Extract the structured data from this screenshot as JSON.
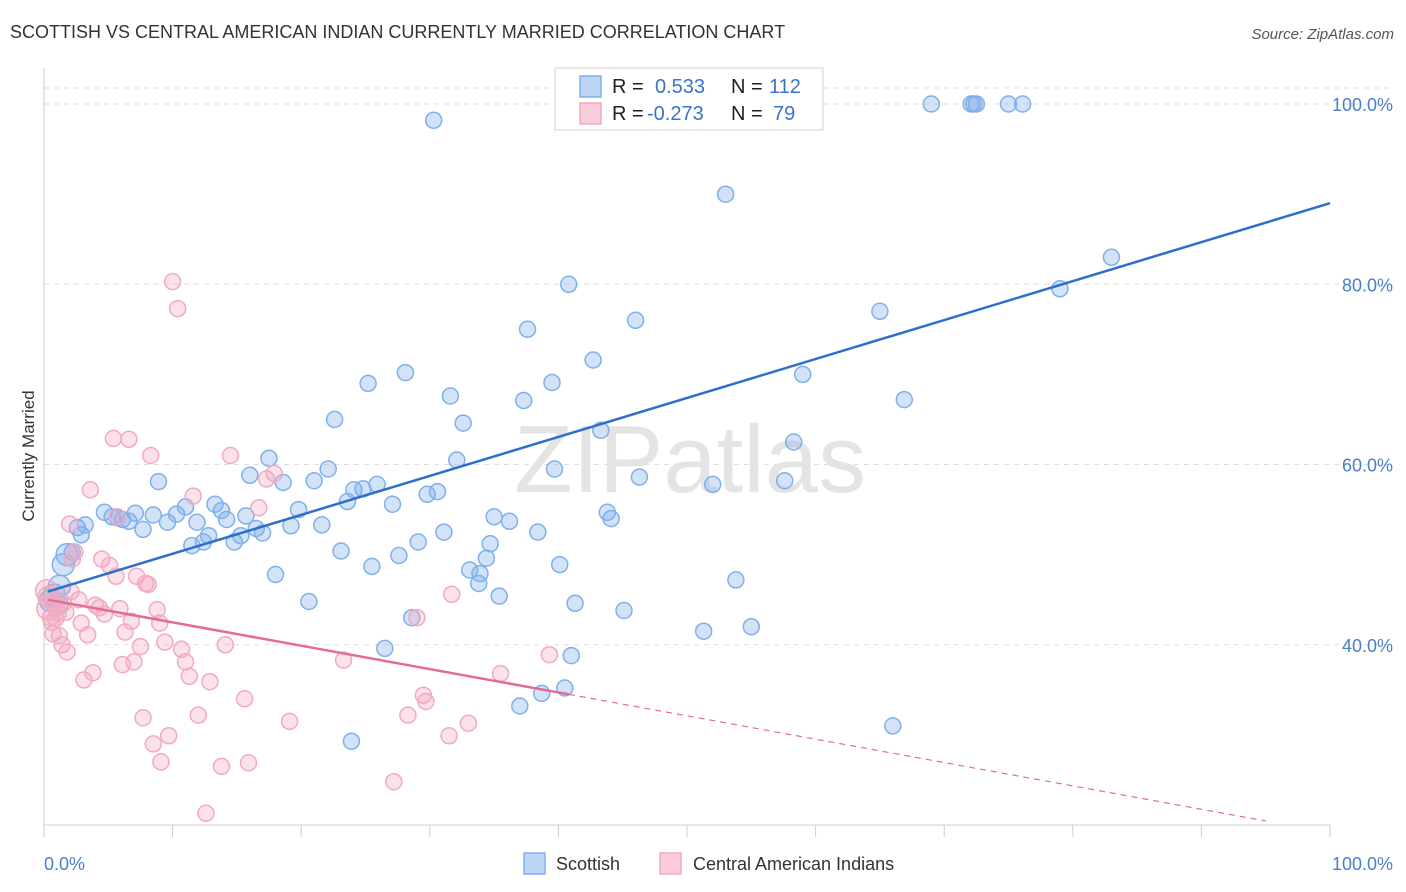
{
  "chart_data": {
    "type": "scatter",
    "title": "SCOTTISH VS CENTRAL AMERICAN INDIAN CURRENTLY MARRIED CORRELATION CHART",
    "source": "Source: ZipAtlas.com",
    "ylabel": "Currently Married",
    "xlabel": "",
    "xlim": [
      0,
      100
    ],
    "ylim": [
      20,
      104
    ],
    "x_tick_labels": [
      "0.0%",
      "100.0%"
    ],
    "y_ticks": [
      {
        "value": 40,
        "label": "40.0%"
      },
      {
        "value": 60,
        "label": "60.0%"
      },
      {
        "value": 80,
        "label": "80.0%"
      },
      {
        "value": 100,
        "label": "100.0%"
      }
    ],
    "grid": true,
    "legend_placement": "bottom-center",
    "watermark": "ZIPatlas",
    "stats": [
      {
        "r_label": "R =",
        "r_value": "0.533",
        "n_label": "N =",
        "n_value": "112"
      },
      {
        "r_label": "R =",
        "r_value": "-0.273",
        "n_label": "N =",
        "n_value": "79"
      }
    ],
    "series": [
      {
        "name": "Scottish",
        "color": "#7fb0ea",
        "line_color": "#2f6fcc",
        "trend": {
          "x0": 0.3,
          "y0": 45.9,
          "x1": 100,
          "y1": 89.0,
          "dash_from": 100
        },
        "points": [
          [
            0.5,
            44.9
          ],
          [
            0.8,
            45.5
          ],
          [
            1.0,
            44.5
          ],
          [
            1.2,
            46.5
          ],
          [
            1.5,
            48.9
          ],
          [
            1.8,
            50.0
          ],
          [
            2.2,
            50.3
          ],
          [
            2.6,
            53.0
          ],
          [
            2.9,
            52.2
          ],
          [
            3.2,
            53.3
          ],
          [
            4.7,
            54.7
          ],
          [
            5.3,
            54.2
          ],
          [
            5.7,
            54.1
          ],
          [
            6.1,
            53.9
          ],
          [
            6.6,
            53.7
          ],
          [
            7.1,
            54.6
          ],
          [
            7.7,
            52.8
          ],
          [
            8.5,
            54.4
          ],
          [
            8.9,
            58.1
          ],
          [
            9.6,
            53.6
          ],
          [
            10.3,
            54.5
          ],
          [
            11.0,
            55.3
          ],
          [
            11.5,
            51.0
          ],
          [
            11.9,
            53.6
          ],
          [
            12.4,
            51.4
          ],
          [
            12.8,
            52.1
          ],
          [
            13.3,
            55.6
          ],
          [
            13.8,
            54.9
          ],
          [
            14.2,
            53.9
          ],
          [
            14.8,
            51.4
          ],
          [
            15.3,
            52.1
          ],
          [
            15.7,
            54.3
          ],
          [
            16.0,
            58.8
          ],
          [
            16.5,
            52.9
          ],
          [
            17.0,
            52.4
          ],
          [
            17.5,
            60.7
          ],
          [
            18.0,
            47.8
          ],
          [
            18.6,
            58.0
          ],
          [
            19.2,
            53.2
          ],
          [
            19.8,
            55.0
          ],
          [
            20.6,
            44.8
          ],
          [
            21.0,
            58.2
          ],
          [
            21.6,
            53.3
          ],
          [
            22.1,
            59.5
          ],
          [
            22.6,
            65.0
          ],
          [
            23.1,
            50.4
          ],
          [
            23.6,
            55.9
          ],
          [
            24.1,
            57.2
          ],
          [
            24.8,
            57.3
          ],
          [
            25.2,
            69.0
          ],
          [
            25.5,
            48.7
          ],
          [
            25.9,
            57.8
          ],
          [
            26.5,
            39.6
          ],
          [
            27.1,
            55.6
          ],
          [
            27.6,
            49.9
          ],
          [
            28.1,
            70.2
          ],
          [
            28.6,
            43.0
          ],
          [
            29.1,
            51.4
          ],
          [
            29.8,
            56.7
          ],
          [
            30.6,
            57.0
          ],
          [
            31.1,
            52.5
          ],
          [
            31.6,
            67.6
          ],
          [
            32.1,
            60.5
          ],
          [
            32.6,
            64.6
          ],
          [
            33.1,
            48.3
          ],
          [
            33.8,
            46.8
          ],
          [
            34.4,
            49.6
          ],
          [
            34.7,
            51.2
          ],
          [
            35.0,
            54.2
          ],
          [
            35.4,
            45.4
          ],
          [
            36.2,
            53.7
          ],
          [
            37.0,
            33.2
          ],
          [
            37.3,
            67.1
          ],
          [
            37.6,
            75.0
          ],
          [
            38.4,
            52.5
          ],
          [
            39.5,
            69.1
          ],
          [
            39.7,
            59.5
          ],
          [
            40.1,
            48.9
          ],
          [
            40.8,
            80.0
          ],
          [
            41.0,
            38.8
          ],
          [
            41.3,
            44.6
          ],
          [
            42.7,
            71.6
          ],
          [
            43.3,
            63.8
          ],
          [
            43.8,
            54.7
          ],
          [
            44.1,
            54.0
          ],
          [
            46.0,
            76.0
          ],
          [
            46.3,
            58.6
          ],
          [
            51.3,
            41.5
          ],
          [
            52.0,
            57.8
          ],
          [
            53.0,
            90.0
          ],
          [
            53.8,
            47.2
          ],
          [
            55.0,
            42.0
          ],
          [
            57.6,
            58.2
          ],
          [
            58.3,
            62.5
          ],
          [
            59.0,
            70.0
          ],
          [
            65.0,
            77.0
          ],
          [
            66.0,
            31.0
          ],
          [
            66.9,
            67.2
          ],
          [
            69.0,
            100.0
          ],
          [
            72.1,
            100.0
          ],
          [
            72.3,
            100.0
          ],
          [
            72.5,
            100.0
          ],
          [
            75.0,
            100.0
          ],
          [
            76.1,
            100.0
          ],
          [
            79.0,
            79.5
          ],
          [
            83.0,
            83.0
          ],
          [
            33.9,
            47.9
          ],
          [
            30.3,
            98.2
          ],
          [
            38.7,
            34.6
          ],
          [
            23.9,
            29.3
          ],
          [
            40.5,
            35.2
          ],
          [
            45.1,
            43.8
          ]
        ]
      },
      {
        "name": "Central American Indians",
        "color": "#f2a9c2",
        "line_color": "#e36b94",
        "trend": {
          "x0": 0.3,
          "y0": 45.0,
          "x1": 40.8,
          "y1": 34.5,
          "dash_to": 95
        },
        "points": [
          [
            0.2,
            46.0
          ],
          [
            0.3,
            44.0
          ],
          [
            0.4,
            45.3
          ],
          [
            0.5,
            43.0
          ],
          [
            0.6,
            42.5
          ],
          [
            0.7,
            41.2
          ],
          [
            0.8,
            44.8
          ],
          [
            0.9,
            42.9
          ],
          [
            1.1,
            43.5
          ],
          [
            1.2,
            41.0
          ],
          [
            1.4,
            40.0
          ],
          [
            1.5,
            44.6
          ],
          [
            1.7,
            43.6
          ],
          [
            1.8,
            39.2
          ],
          [
            2.0,
            53.4
          ],
          [
            2.2,
            49.5
          ],
          [
            2.4,
            50.3
          ],
          [
            2.7,
            45.0
          ],
          [
            2.9,
            42.4
          ],
          [
            3.1,
            36.1
          ],
          [
            3.4,
            41.1
          ],
          [
            3.6,
            57.2
          ],
          [
            3.8,
            36.9
          ],
          [
            4.0,
            44.4
          ],
          [
            4.3,
            44.1
          ],
          [
            4.5,
            49.5
          ],
          [
            4.7,
            43.4
          ],
          [
            5.1,
            48.8
          ],
          [
            5.4,
            62.9
          ],
          [
            5.6,
            47.6
          ],
          [
            5.9,
            44.0
          ],
          [
            6.1,
            37.8
          ],
          [
            6.3,
            41.4
          ],
          [
            6.6,
            62.8
          ],
          [
            6.8,
            42.6
          ],
          [
            7.0,
            38.1
          ],
          [
            7.2,
            47.6
          ],
          [
            7.5,
            39.8
          ],
          [
            7.7,
            31.9
          ],
          [
            7.9,
            46.8
          ],
          [
            8.1,
            46.7
          ],
          [
            8.3,
            61.0
          ],
          [
            8.5,
            29.0
          ],
          [
            8.8,
            43.9
          ],
          [
            9.0,
            42.4
          ],
          [
            9.4,
            40.3
          ],
          [
            9.7,
            29.9
          ],
          [
            10.0,
            80.3
          ],
          [
            10.4,
            77.3
          ],
          [
            10.7,
            39.5
          ],
          [
            11.0,
            38.1
          ],
          [
            11.3,
            36.5
          ],
          [
            11.6,
            56.5
          ],
          [
            12.0,
            32.2
          ],
          [
            12.6,
            21.3
          ],
          [
            12.9,
            35.9
          ],
          [
            13.8,
            26.5
          ],
          [
            14.1,
            40.0
          ],
          [
            14.5,
            61.0
          ],
          [
            15.6,
            34.0
          ],
          [
            15.9,
            26.9
          ],
          [
            16.7,
            55.2
          ],
          [
            17.3,
            58.4
          ],
          [
            17.9,
            59.0
          ],
          [
            19.1,
            31.5
          ],
          [
            23.3,
            38.3
          ],
          [
            27.2,
            24.8
          ],
          [
            28.3,
            32.2
          ],
          [
            29.0,
            43.0
          ],
          [
            29.5,
            34.4
          ],
          [
            29.7,
            33.7
          ],
          [
            31.5,
            29.9
          ],
          [
            31.7,
            45.6
          ],
          [
            33.0,
            31.3
          ],
          [
            35.5,
            36.8
          ],
          [
            39.3,
            38.9
          ],
          [
            5.7,
            54.2
          ],
          [
            9.1,
            27.0
          ],
          [
            2.1,
            45.9
          ]
        ]
      }
    ]
  }
}
